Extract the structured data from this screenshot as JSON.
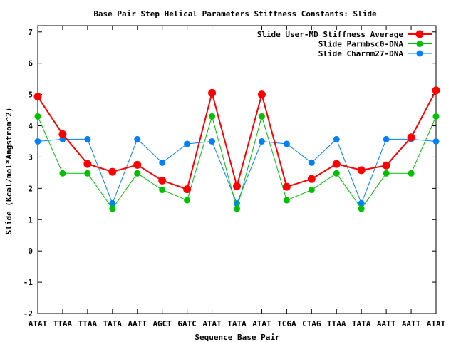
{
  "chart_data": {
    "type": "line",
    "title": "Base Pair Step Helical Parameters Stiffness Constants: Slide",
    "xlabel": "Sequence Base Pair",
    "ylabel": "Slide (Kcal/mol*Angstrom^2)",
    "categories": [
      "ATAT",
      "TTAA",
      "TTAA",
      "TATA",
      "AATT",
      "AGCT",
      "GATC",
      "ATAT",
      "TATA",
      "ATAT",
      "TCGA",
      "CTAG",
      "TTAA",
      "TATA",
      "AATT",
      "AATT",
      "ATAT"
    ],
    "ylim": [
      -2,
      7.2
    ],
    "yticks": [
      -2,
      -1,
      0,
      1,
      2,
      3,
      4,
      5,
      6,
      7
    ],
    "grid": false,
    "legend_position": "top-right",
    "series": [
      {
        "name": "Slide User-MD Stiffness Average",
        "color": "#ff0000",
        "values": [
          4.93,
          3.73,
          2.78,
          2.53,
          2.75,
          2.25,
          1.97,
          5.05,
          2.07,
          5.0,
          2.05,
          2.3,
          2.78,
          2.58,
          2.73,
          3.63,
          5.13
        ]
      },
      {
        "name": "Slide Parmbsc0-DNA",
        "color": "#00c000",
        "values": [
          4.3,
          2.48,
          2.48,
          1.35,
          2.48,
          1.95,
          1.62,
          4.3,
          1.35,
          4.3,
          1.62,
          1.95,
          2.48,
          1.35,
          2.48,
          2.48,
          4.3
        ]
      },
      {
        "name": "Slide Charmm27-DNA",
        "color": "#0080ff",
        "values": [
          3.5,
          3.57,
          3.57,
          1.52,
          3.57,
          2.82,
          3.42,
          3.5,
          1.52,
          3.5,
          3.42,
          2.82,
          3.57,
          1.52,
          3.57,
          3.57,
          3.5
        ]
      }
    ]
  }
}
